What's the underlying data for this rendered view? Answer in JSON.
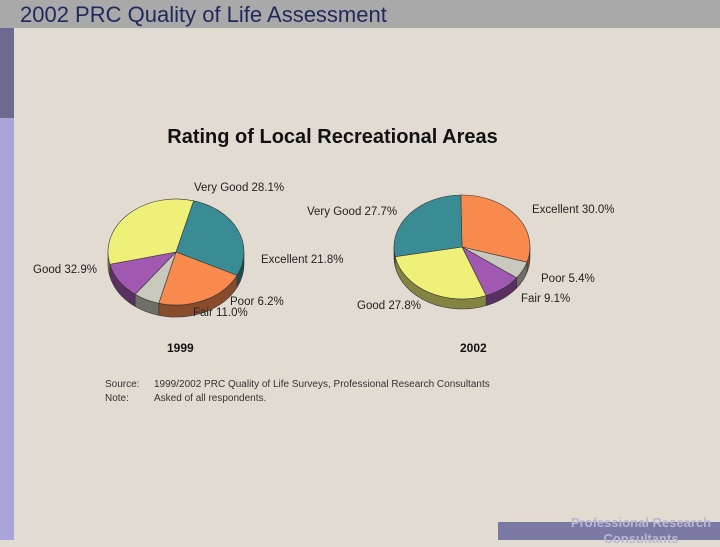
{
  "header": {
    "title": "2002 PRC Quality of Life Assessment"
  },
  "chart_data": [
    {
      "type": "pie",
      "year_label": "1999",
      "title": "Rating of Local Recreational Areas",
      "slices": [
        {
          "name": "Very Good",
          "value": 28.1,
          "label": "Very Good  28.1%",
          "color": "#3a8c94"
        },
        {
          "name": "Excellent",
          "value": 21.8,
          "label": "Excellent  21.8%",
          "color": "#f98a4e"
        },
        {
          "name": "Poor",
          "value": 6.2,
          "label": "Poor  6.2%",
          "color": "#c9c8bd"
        },
        {
          "name": "Fair",
          "value": 11.0,
          "label": "Fair  11.0%",
          "color": "#a158b0"
        },
        {
          "name": "Good",
          "value": 32.9,
          "label": "Good  32.9%",
          "color": "#eff078"
        }
      ]
    },
    {
      "type": "pie",
      "year_label": "2002",
      "title": "Rating of Local Recreational Areas",
      "slices": [
        {
          "name": "Excellent",
          "value": 30.0,
          "label": "Excellent  30.0%",
          "color": "#f98a4e"
        },
        {
          "name": "Poor",
          "value": 5.4,
          "label": "Poor  5.4%",
          "color": "#c9c8bd"
        },
        {
          "name": "Fair",
          "value": 9.1,
          "label": "Fair  9.1%",
          "color": "#a158b0"
        },
        {
          "name": "Good",
          "value": 27.8,
          "label": "Good  27.8%",
          "color": "#eff078"
        },
        {
          "name": "Very Good",
          "value": 27.7,
          "label": "Very Good  27.7%",
          "color": "#3a8c94"
        }
      ]
    }
  ],
  "source": {
    "source_label": "Source:",
    "source_text": "1999/2002 PRC Quality of Life Surveys, Professional Research Consultants",
    "note_label": "Note:",
    "note_text": "Asked of all respondents."
  },
  "footer": {
    "brand": "Professional Research Consultants"
  }
}
